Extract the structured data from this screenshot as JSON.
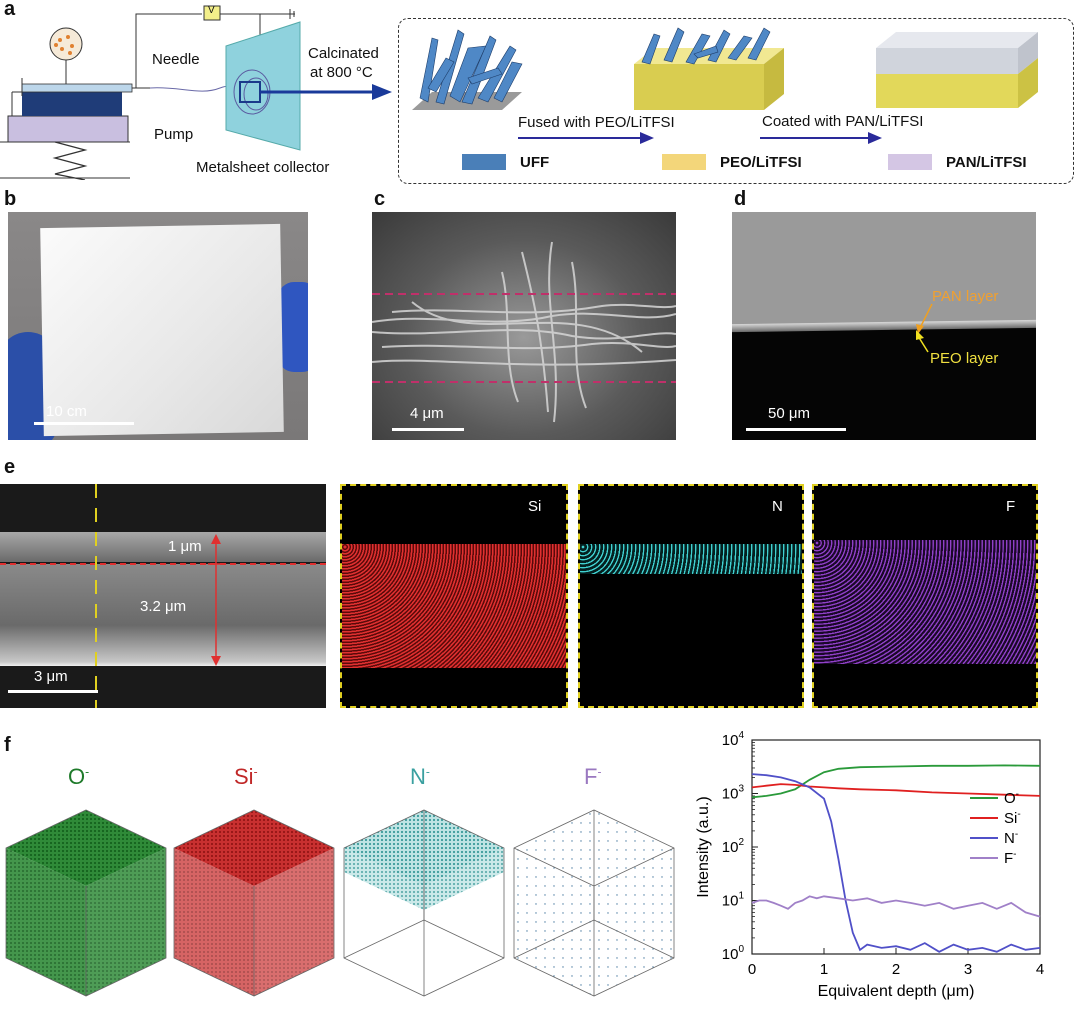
{
  "panel_labels": {
    "a": "a",
    "b": "b",
    "c": "c",
    "d": "d",
    "e": "e",
    "f": "f"
  },
  "panel_a": {
    "needle": "Needle",
    "pump": "Pump",
    "collector": "Metalsheet collector",
    "voltage": "V",
    "calcinated_line1": "Calcinated",
    "calcinated_line2": "at 800 °C",
    "step1": "Fused with PEO/LiTFSI",
    "step2": "Coated with PAN/LiTFSI",
    "legend": [
      {
        "label": "UFF",
        "color": "#4a7fb8"
      },
      {
        "label": "PEO/LiTFSI",
        "color": "#f3d67a"
      },
      {
        "label": "PAN/LiTFSI",
        "color": "#d4c6e4"
      }
    ]
  },
  "panel_b": {
    "scale": "10 cm"
  },
  "panel_c": {
    "scale": "4 μm"
  },
  "panel_d": {
    "scale": "50 μm",
    "pan_layer": "PAN layer",
    "peo_layer": "PEO layer"
  },
  "panel_e": {
    "scale": "3 μm",
    "thickness_top": "1 μm",
    "thickness_bottom": "3.2 μm",
    "maps": [
      {
        "label": "Si",
        "color": "#d03030"
      },
      {
        "label": "N",
        "color": "#30c0c0"
      },
      {
        "label": "F",
        "color": "#9050c0"
      }
    ]
  },
  "panel_f": {
    "cubes": [
      {
        "label": "O",
        "sup": "-",
        "color": "#1e7a2a"
      },
      {
        "label": "Si",
        "sup": "-",
        "color": "#c02828"
      },
      {
        "label": "N",
        "sup": "-",
        "color": "#3aa0a0"
      },
      {
        "label": "F",
        "sup": "-",
        "color": "#9a78c0"
      }
    ]
  },
  "chart_data": {
    "type": "line",
    "xlabel": "Equivalent depth (μm)",
    "ylabel": "Intensity (a.u.)",
    "xlim": [
      0,
      4
    ],
    "ylim": [
      1,
      10000
    ],
    "yscale": "log",
    "xticks": [
      "0",
      "1",
      "2",
      "3",
      "4"
    ],
    "yticks": [
      {
        "base": "10",
        "exp": "0"
      },
      {
        "base": "10",
        "exp": "1"
      },
      {
        "base": "10",
        "exp": "2"
      },
      {
        "base": "10",
        "exp": "3"
      },
      {
        "base": "10",
        "exp": "4"
      }
    ],
    "legend_position": "right",
    "series": [
      {
        "name": "O",
        "sup": "-",
        "color": "#2a9a3a",
        "x": [
          0,
          0.2,
          0.4,
          0.6,
          0.8,
          1.0,
          1.2,
          1.5,
          2.0,
          2.5,
          3.0,
          3.5,
          4.0
        ],
        "y": [
          850,
          900,
          1000,
          1200,
          1800,
          2500,
          2900,
          3100,
          3200,
          3300,
          3300,
          3350,
          3300
        ]
      },
      {
        "name": "Si",
        "sup": "-",
        "color": "#e02020",
        "x": [
          0,
          0.2,
          0.4,
          0.6,
          0.8,
          1.0,
          1.2,
          1.5,
          2.0,
          2.5,
          3.0,
          3.5,
          4.0
        ],
        "y": [
          1300,
          1400,
          1500,
          1450,
          1350,
          1300,
          1250,
          1200,
          1150,
          1050,
          1000,
          950,
          900
        ]
      },
      {
        "name": "N",
        "sup": "-",
        "color": "#5050c8",
        "x": [
          0,
          0.2,
          0.4,
          0.6,
          0.8,
          1.0,
          1.1,
          1.2,
          1.3,
          1.4,
          1.5,
          1.6,
          1.8,
          2.0,
          2.2,
          2.4,
          2.6,
          2.8,
          3.0,
          3.2,
          3.4,
          3.6,
          3.8,
          4.0
        ],
        "y": [
          2300,
          2200,
          2000,
          1700,
          1300,
          800,
          300,
          60,
          10,
          2.5,
          1.2,
          1.5,
          1.3,
          1.4,
          1.2,
          1.6,
          1.1,
          1.5,
          1.2,
          1.3,
          1.1,
          1.5,
          1.2,
          1.3
        ]
      },
      {
        "name": "F",
        "sup": "-",
        "color": "#a080c8",
        "x": [
          0,
          0.1,
          0.2,
          0.3,
          0.4,
          0.5,
          0.6,
          0.7,
          0.8,
          0.9,
          1.0,
          1.2,
          1.4,
          1.6,
          1.8,
          2.0,
          2.2,
          2.4,
          2.6,
          2.8,
          3.0,
          3.2,
          3.4,
          3.6,
          3.8,
          4.0
        ],
        "y": [
          9,
          10,
          10,
          9,
          8,
          7,
          9,
          10,
          12,
          11,
          12,
          11,
          10,
          11,
          9,
          10,
          9,
          8,
          9,
          7,
          8,
          9,
          7,
          9,
          6,
          5
        ]
      }
    ]
  }
}
